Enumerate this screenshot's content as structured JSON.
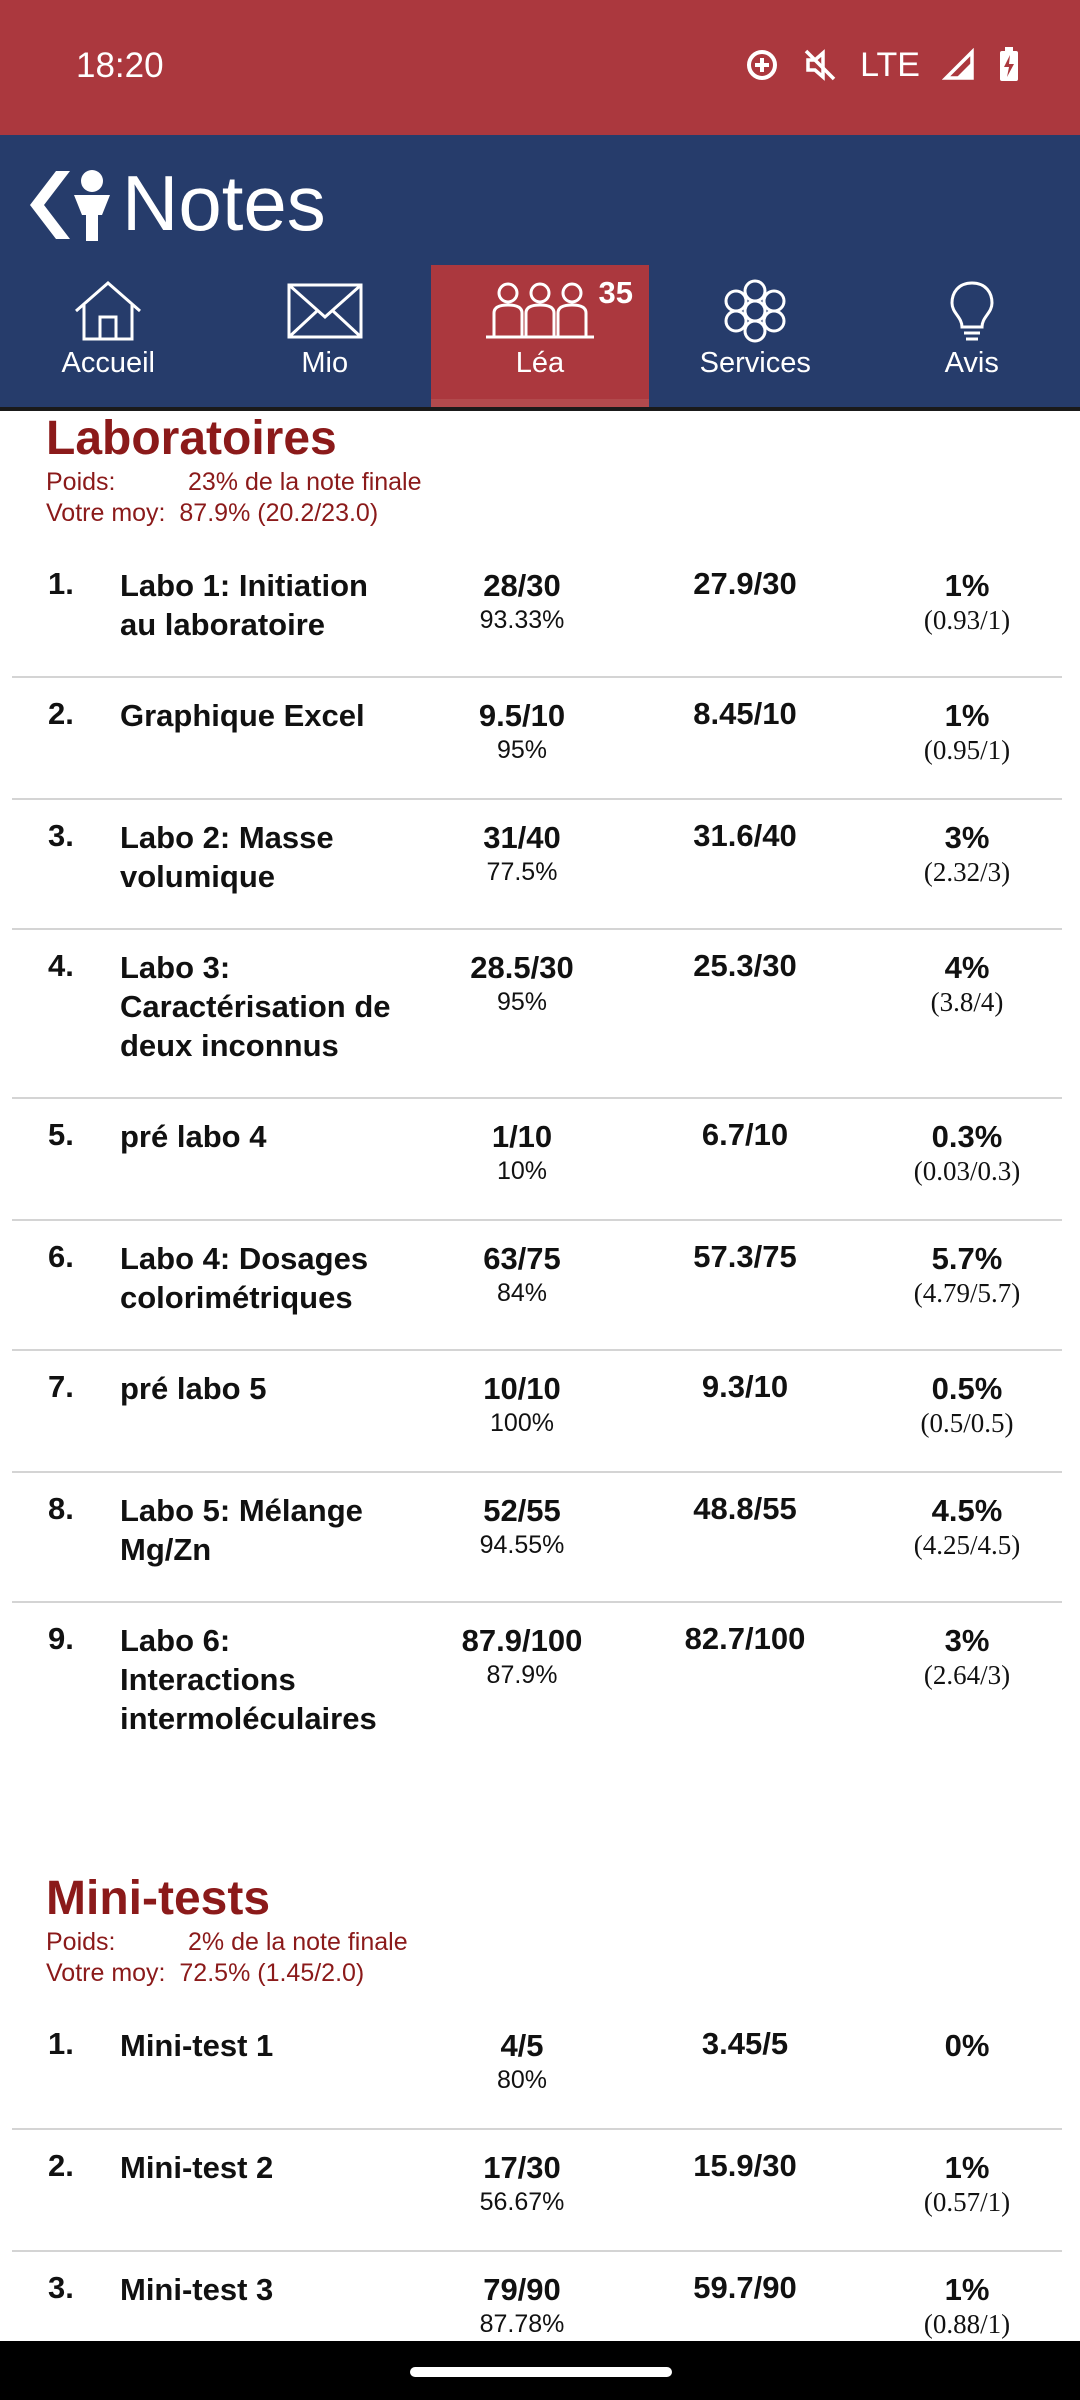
{
  "status_bar": {
    "time": "18:20",
    "network": "LTE",
    "icons": [
      "data-saver-icon",
      "mute-icon",
      "signal-icon",
      "battery-charging-icon"
    ]
  },
  "header": {
    "title": "Notes",
    "back_icon": "back-chevron-logo-icon"
  },
  "nav": {
    "items": [
      {
        "label": "Accueil",
        "icon": "home-icon"
      },
      {
        "label": "Mio",
        "icon": "mail-icon"
      },
      {
        "label": "Léa",
        "icon": "people-icon",
        "badge": "35",
        "active": true
      },
      {
        "label": "Services",
        "icon": "flower-icon"
      },
      {
        "label": "Avis",
        "icon": "lightbulb-icon"
      }
    ]
  },
  "sections": [
    {
      "title": "Laboratoires",
      "poids_label": "Poids:",
      "poids_value": "23% de la note finale",
      "moy_label": "Votre moy:",
      "moy_value": "87.9%  (20.2/23.0)",
      "rows": [
        {
          "num": "1.",
          "name": "Labo 1: Initiation au laboratoire",
          "score": "28/30",
          "pct": "93.33%",
          "avg": "27.9/30",
          "weight": "1%",
          "weight_detail": "(0.93/1)"
        },
        {
          "num": "2.",
          "name": "Graphique Excel",
          "score": "9.5/10",
          "pct": "95%",
          "avg": "8.45/10",
          "weight": "1%",
          "weight_detail": "(0.95/1)"
        },
        {
          "num": "3.",
          "name": "Labo 2: Masse volumique",
          "score": "31/40",
          "pct": "77.5%",
          "avg": "31.6/40",
          "weight": "3%",
          "weight_detail": "(2.32/3)"
        },
        {
          "num": "4.",
          "name": "Labo 3: Caractérisation de deux inconnus",
          "score": "28.5/30",
          "pct": "95%",
          "avg": "25.3/30",
          "weight": "4%",
          "weight_detail": "(3.8/4)"
        },
        {
          "num": "5.",
          "name": "pré labo 4",
          "score": "1/10",
          "pct": "10%",
          "avg": "6.7/10",
          "weight": "0.3%",
          "weight_detail": "(0.03/0.3)"
        },
        {
          "num": "6.",
          "name": "Labo 4: Dosages colorimétriques",
          "score": "63/75",
          "pct": "84%",
          "avg": "57.3/75",
          "weight": "5.7%",
          "weight_detail": "(4.79/5.7)"
        },
        {
          "num": "7.",
          "name": "pré labo 5",
          "score": "10/10",
          "pct": "100%",
          "avg": "9.3/10",
          "weight": "0.5%",
          "weight_detail": "(0.5/0.5)"
        },
        {
          "num": "8.",
          "name": "Labo 5: Mélange Mg/Zn",
          "score": "52/55",
          "pct": "94.55%",
          "avg": "48.8/55",
          "weight": "4.5%",
          "weight_detail": "(4.25/4.5)"
        },
        {
          "num": "9.",
          "name": "Labo 6: Interactions intermoléculaires",
          "score": "87.9/100",
          "pct": "87.9%",
          "avg": "82.7/100",
          "weight": "3%",
          "weight_detail": "(2.64/3)"
        }
      ]
    },
    {
      "title": "Mini-tests",
      "poids_label": "Poids:",
      "poids_value": "2% de la note finale",
      "moy_label": "Votre moy:",
      "moy_value": "72.5%  (1.45/2.0)",
      "rows": [
        {
          "num": "1.",
          "name": "Mini-test 1",
          "score": "4/5",
          "pct": "80%",
          "avg": "3.45/5",
          "weight": "0%",
          "weight_detail": ""
        },
        {
          "num": "2.",
          "name": "Mini-test 2",
          "score": "17/30",
          "pct": "56.67%",
          "avg": "15.9/30",
          "weight": "1%",
          "weight_detail": "(0.57/1)"
        },
        {
          "num": "3.",
          "name": "Mini-test 3",
          "score": "79/90",
          "pct": "87.78%",
          "avg": "59.7/90",
          "weight": "1%",
          "weight_detail": "(0.88/1)"
        }
      ]
    }
  ]
}
